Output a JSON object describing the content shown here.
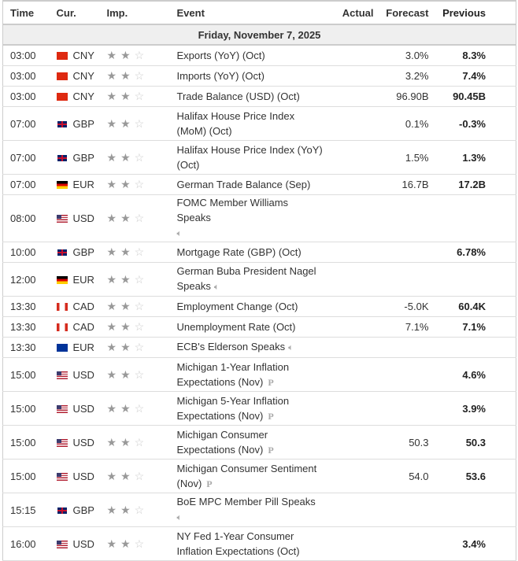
{
  "headers": {
    "time": "Time",
    "cur": "Cur.",
    "imp": "Imp.",
    "event": "Event",
    "actual": "Actual",
    "forecast": "Forecast",
    "previous": "Previous"
  },
  "date": "Friday, November 7, 2025",
  "rows": [
    {
      "time": "03:00",
      "cur": "CNY",
      "flag": "cny",
      "imp": 2,
      "event": "Exports (YoY) (Oct)",
      "actual": "",
      "forecast": "3.0%",
      "previous": "8.3%",
      "tall": false
    },
    {
      "time": "03:00",
      "cur": "CNY",
      "flag": "cny",
      "imp": 2,
      "event": "Imports (YoY) (Oct)",
      "actual": "",
      "forecast": "3.2%",
      "previous": "7.4%",
      "tall": false
    },
    {
      "time": "03:00",
      "cur": "CNY",
      "flag": "cny",
      "imp": 2,
      "event": "Trade Balance (USD) (Oct)",
      "actual": "",
      "forecast": "96.90B",
      "previous": "90.45B",
      "tall": false
    },
    {
      "time": "07:00",
      "cur": "GBP",
      "flag": "gbp",
      "imp": 2,
      "event": "Halifax House Price Index (MoM) (Oct)",
      "actual": "",
      "forecast": "0.1%",
      "previous": "-0.3%",
      "tall": true
    },
    {
      "time": "07:00",
      "cur": "GBP",
      "flag": "gbp",
      "imp": 2,
      "event": "Halifax House Price Index (YoY) (Oct)",
      "actual": "",
      "forecast": "1.5%",
      "previous": "1.3%",
      "tall": true
    },
    {
      "time": "07:00",
      "cur": "EUR",
      "flag": "deu",
      "imp": 2,
      "event": "German Trade Balance (Sep)",
      "actual": "",
      "forecast": "16.7B",
      "previous": "17.2B",
      "tall": false
    },
    {
      "time": "08:00",
      "cur": "USD",
      "flag": "usd",
      "imp": 2,
      "event": "FOMC Member Williams Speaks",
      "icon": "speaker-icon",
      "actual": "",
      "forecast": "",
      "previous": "",
      "tall": true,
      "iconBreak": true
    },
    {
      "time": "10:00",
      "cur": "GBP",
      "flag": "gbp",
      "imp": 2,
      "event": "Mortgage Rate (GBP) (Oct)",
      "actual": "",
      "forecast": "",
      "previous": "6.78%",
      "tall": false
    },
    {
      "time": "12:00",
      "cur": "EUR",
      "flag": "deu",
      "imp": 2,
      "event": "German Buba President Nagel Speaks",
      "icon": "speaker-icon",
      "actual": "",
      "forecast": "",
      "previous": "",
      "tall": true
    },
    {
      "time": "13:30",
      "cur": "CAD",
      "flag": "cad",
      "imp": 2,
      "event": "Employment Change (Oct)",
      "actual": "",
      "forecast": "-5.0K",
      "previous": "60.4K",
      "tall": false
    },
    {
      "time": "13:30",
      "cur": "CAD",
      "flag": "cad",
      "imp": 2,
      "event": "Unemployment Rate (Oct)",
      "actual": "",
      "forecast": "7.1%",
      "previous": "7.1%",
      "tall": false
    },
    {
      "time": "13:30",
      "cur": "EUR",
      "flag": "eur",
      "imp": 2,
      "event": "ECB's Elderson Speaks",
      "icon": "speaker-icon",
      "actual": "",
      "forecast": "",
      "previous": "",
      "tall": false
    },
    {
      "time": "15:00",
      "cur": "USD",
      "flag": "usd",
      "imp": 2,
      "event": "Michigan 1-Year Inflation Expectations (Nov)",
      "icon": "preliminary-icon",
      "actual": "",
      "forecast": "",
      "previous": "4.6%",
      "tall": true
    },
    {
      "time": "15:00",
      "cur": "USD",
      "flag": "usd",
      "imp": 2,
      "event": "Michigan 5-Year Inflation Expectations (Nov)",
      "icon": "preliminary-icon",
      "actual": "",
      "forecast": "",
      "previous": "3.9%",
      "tall": true
    },
    {
      "time": "15:00",
      "cur": "USD",
      "flag": "usd",
      "imp": 2,
      "event": "Michigan Consumer Expectations (Nov)",
      "icon": "preliminary-icon",
      "actual": "",
      "forecast": "50.3",
      "previous": "50.3",
      "tall": true
    },
    {
      "time": "15:00",
      "cur": "USD",
      "flag": "usd",
      "imp": 2,
      "event": "Michigan Consumer Sentiment (Nov)",
      "icon": "preliminary-icon",
      "actual": "",
      "forecast": "54.0",
      "previous": "53.6",
      "tall": true
    },
    {
      "time": "15:15",
      "cur": "GBP",
      "flag": "gbp",
      "imp": 2,
      "event": "BoE MPC Member Pill Speaks",
      "icon": "speaker-icon",
      "actual": "",
      "forecast": "",
      "previous": "",
      "tall": true,
      "iconBreak": true
    },
    {
      "time": "16:00",
      "cur": "USD",
      "flag": "usd",
      "imp": 2,
      "event": "NY Fed 1-Year Consumer Inflation Expectations (Oct)",
      "actual": "",
      "forecast": "",
      "previous": "3.4%",
      "tall": true
    }
  ]
}
